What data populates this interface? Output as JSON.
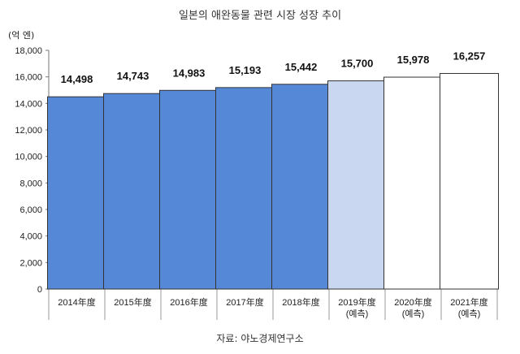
{
  "title": "일본의 애완동물 관련 시장 성장 추이",
  "unit": "(억 엔)",
  "source": "자료: 야노경제연구소",
  "colors": {
    "actual": "#5588d6",
    "estimate_2019": "#c9d8f0",
    "estimate_future": "#ffffff",
    "border": "#333333",
    "grid": "#dddddd"
  },
  "chart_data": {
    "type": "bar",
    "categories": [
      [
        "2014年度"
      ],
      [
        "2015年度"
      ],
      [
        "2016年度"
      ],
      [
        "2017年度"
      ],
      [
        "2018年度"
      ],
      [
        "2019年度",
        "(예측)"
      ],
      [
        "2020年度",
        "(예측)"
      ],
      [
        "2021年度",
        "(예측)"
      ]
    ],
    "values": [
      14498,
      14743,
      14983,
      15193,
      15442,
      15700,
      15978,
      16257
    ],
    "value_labels": [
      "14,498",
      "14,743",
      "14,983",
      "15,193",
      "15,442",
      "15,700",
      "15,978",
      "16,257"
    ],
    "bar_style": [
      "actual",
      "actual",
      "actual",
      "actual",
      "actual",
      "estimate_2019",
      "estimate_future",
      "estimate_future"
    ],
    "ylim": [
      0,
      18000
    ],
    "yticks": [
      0,
      2000,
      4000,
      6000,
      8000,
      10000,
      12000,
      14000,
      16000,
      18000
    ],
    "ytick_labels": [
      "0",
      "2,000",
      "4,000",
      "6,000",
      "8,000",
      "10,000",
      "12,000",
      "14,000",
      "16,000",
      "18,000"
    ],
    "grid": false,
    "legend": "none"
  }
}
